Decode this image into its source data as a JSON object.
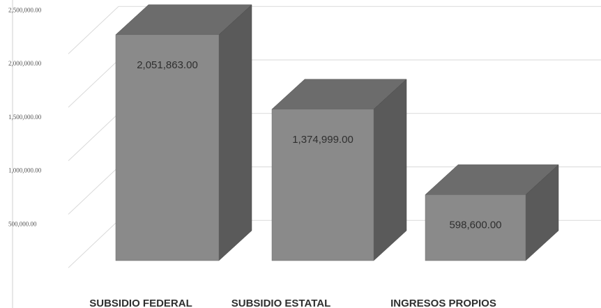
{
  "chart_data": {
    "type": "bar",
    "style": "3d-column",
    "title": "",
    "xlabel": "",
    "ylabel": "",
    "categories": [
      "SUBSIDIO FEDERAL",
      "SUBSIDIO ESTATAL",
      "INGRESOS PROPIOS"
    ],
    "values": [
      2051863.0,
      1374999.0,
      598600.0
    ],
    "data_labels": [
      "2,051,863.00",
      "1,374,999.00",
      "598,600.00"
    ],
    "ylim": [
      0,
      2500000
    ],
    "y_ticks": [
      {
        "value": 500000,
        "label": "500,000.00"
      },
      {
        "value": 1000000,
        "label": "1,000,000.00"
      },
      {
        "value": 1500000,
        "label": "1,500,000.00"
      },
      {
        "value": 2000000,
        "label": "2,000,000.00"
      },
      {
        "value": 2500000,
        "label": "2,500,000.00"
      }
    ],
    "grid": true,
    "legend": "none",
    "colors": {
      "front": "#8a8a8a",
      "top": "#6c6c6c",
      "side": "#5a5a5a",
      "grid": "#d9d9d9"
    }
  }
}
